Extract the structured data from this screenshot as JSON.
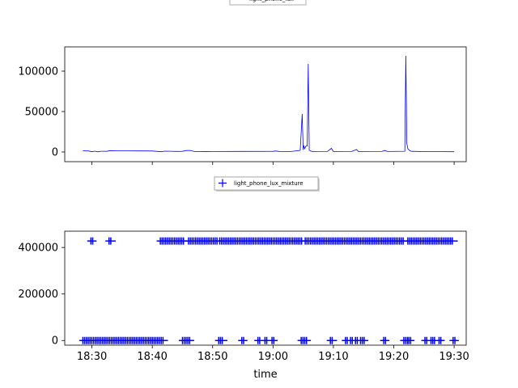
{
  "chart_data": [
    {
      "type": "line",
      "legend": {
        "label": "light_phone_lux",
        "placement": "top-center"
      },
      "ylim": [
        -12000,
        130000
      ],
      "yticks": [
        0,
        50000,
        100000
      ],
      "ytick_labels": [
        "0",
        "50000",
        "100000"
      ],
      "x_range": [
        "18:25:30",
        "19:32:00"
      ],
      "series": [
        {
          "name": "light_phone_lux",
          "color": "#0000ff",
          "points": [
            [
              "18:28:30",
              1500
            ],
            [
              "18:29:30",
              1200
            ],
            [
              "18:30:00",
              300
            ],
            [
              "18:30:30",
              1000
            ],
            [
              "18:31:00",
              200
            ],
            [
              "18:31:30",
              900
            ],
            [
              "18:32:30",
              800
            ],
            [
              "18:33:00",
              1700
            ],
            [
              "18:34:00",
              1500
            ],
            [
              "18:36:00",
              1400
            ],
            [
              "18:38:00",
              1300
            ],
            [
              "18:40:00",
              1200
            ],
            [
              "18:41:30",
              300
            ],
            [
              "18:42:00",
              1000
            ],
            [
              "18:43:00",
              900
            ],
            [
              "18:44:00",
              700
            ],
            [
              "18:45:00",
              800
            ],
            [
              "18:45:40",
              1800
            ],
            [
              "18:46:20",
              1900
            ],
            [
              "18:47:00",
              500
            ],
            [
              "18:50:00",
              600
            ],
            [
              "18:55:00",
              700
            ],
            [
              "19:00:00",
              800
            ],
            [
              "19:00:30",
              1200
            ],
            [
              "19:01:00",
              700
            ],
            [
              "19:03:00",
              600
            ],
            [
              "19:04:30",
              2000
            ],
            [
              "19:04:50",
              47000
            ],
            [
              "19:05:00",
              2500
            ],
            [
              "19:05:05",
              8000
            ],
            [
              "19:05:15",
              4000
            ],
            [
              "19:05:25",
              7000
            ],
            [
              "19:05:40",
              7500
            ],
            [
              "19:05:50",
              109000
            ],
            [
              "19:06:00",
              2000
            ],
            [
              "19:06:30",
              500
            ],
            [
              "19:09:00",
              600
            ],
            [
              "19:09:40",
              4500
            ],
            [
              "19:10:00",
              500
            ],
            [
              "19:13:00",
              600
            ],
            [
              "19:13:50",
              3000
            ],
            [
              "19:14:10",
              500
            ],
            [
              "19:18:00",
              600
            ],
            [
              "19:18:30",
              1800
            ],
            [
              "19:19:00",
              600
            ],
            [
              "19:21:50",
              900
            ],
            [
              "19:22:00",
              119000
            ],
            [
              "19:22:10",
              10500
            ],
            [
              "19:22:20",
              4000
            ],
            [
              "19:22:40",
              1500
            ],
            [
              "19:23:00",
              800
            ],
            [
              "19:25:00",
              500
            ],
            [
              "19:28:00",
              400
            ],
            [
              "19:30:00",
              300
            ]
          ]
        }
      ]
    },
    {
      "type": "scatter",
      "legend": {
        "label": "light_phone_lux_mixture",
        "placement": "top-center"
      },
      "xlabel": "time",
      "ylim": [
        -20000,
        470000
      ],
      "yticks": [
        0,
        200000,
        400000
      ],
      "ytick_labels": [
        "0",
        "200000",
        "400000"
      ],
      "xticks": [
        "18:30",
        "18:40",
        "18:50",
        "19:00",
        "19:10",
        "19:20",
        "19:30"
      ],
      "x_range": [
        "18:25:30",
        "19:32:00"
      ],
      "series": [
        {
          "name": "light_phone_lux_mixture",
          "color": "#0000ff",
          "marker": "+",
          "high_value": 428000,
          "high_segments": [
            [
              "18:29:50",
              "18:30:10"
            ],
            [
              "18:32:50",
              "18:33:20"
            ],
            [
              "18:41:20",
              "18:45:20"
            ],
            [
              "18:46:00",
              "18:51:00"
            ],
            [
              "18:51:10",
              "19:05:00"
            ],
            [
              "19:05:20",
              "19:21:50"
            ],
            [
              "19:22:20",
              "19:30:00"
            ]
          ],
          "low_value": 0,
          "low_segments": [
            [
              "18:28:30",
              "18:42:00"
            ],
            [
              "18:45:00",
              "18:46:20"
            ],
            [
              "18:51:00",
              "18:51:50"
            ],
            [
              "18:54:50",
              "18:55:10"
            ],
            [
              "18:57:30",
              "18:58:00"
            ],
            [
              "18:58:40",
              "18:59:00"
            ],
            [
              "18:59:50",
              "19:00:10"
            ],
            [
              "19:04:40",
              "19:05:40"
            ],
            [
              "19:09:30",
              "19:10:00"
            ],
            [
              "19:12:00",
              "19:12:20"
            ],
            [
              "19:12:50",
              "19:13:10"
            ],
            [
              "19:13:40",
              "19:14:10"
            ],
            [
              "19:14:30",
              "19:15:10"
            ],
            [
              "19:18:20",
              "19:18:40"
            ],
            [
              "19:21:40",
              "19:22:20"
            ],
            [
              "19:22:30",
              "19:22:50"
            ],
            [
              "19:25:10",
              "19:25:30"
            ],
            [
              "19:26:10",
              "19:26:50"
            ],
            [
              "19:27:30",
              "19:27:50"
            ],
            [
              "19:29:50",
              "19:30:10"
            ]
          ]
        }
      ]
    }
  ]
}
